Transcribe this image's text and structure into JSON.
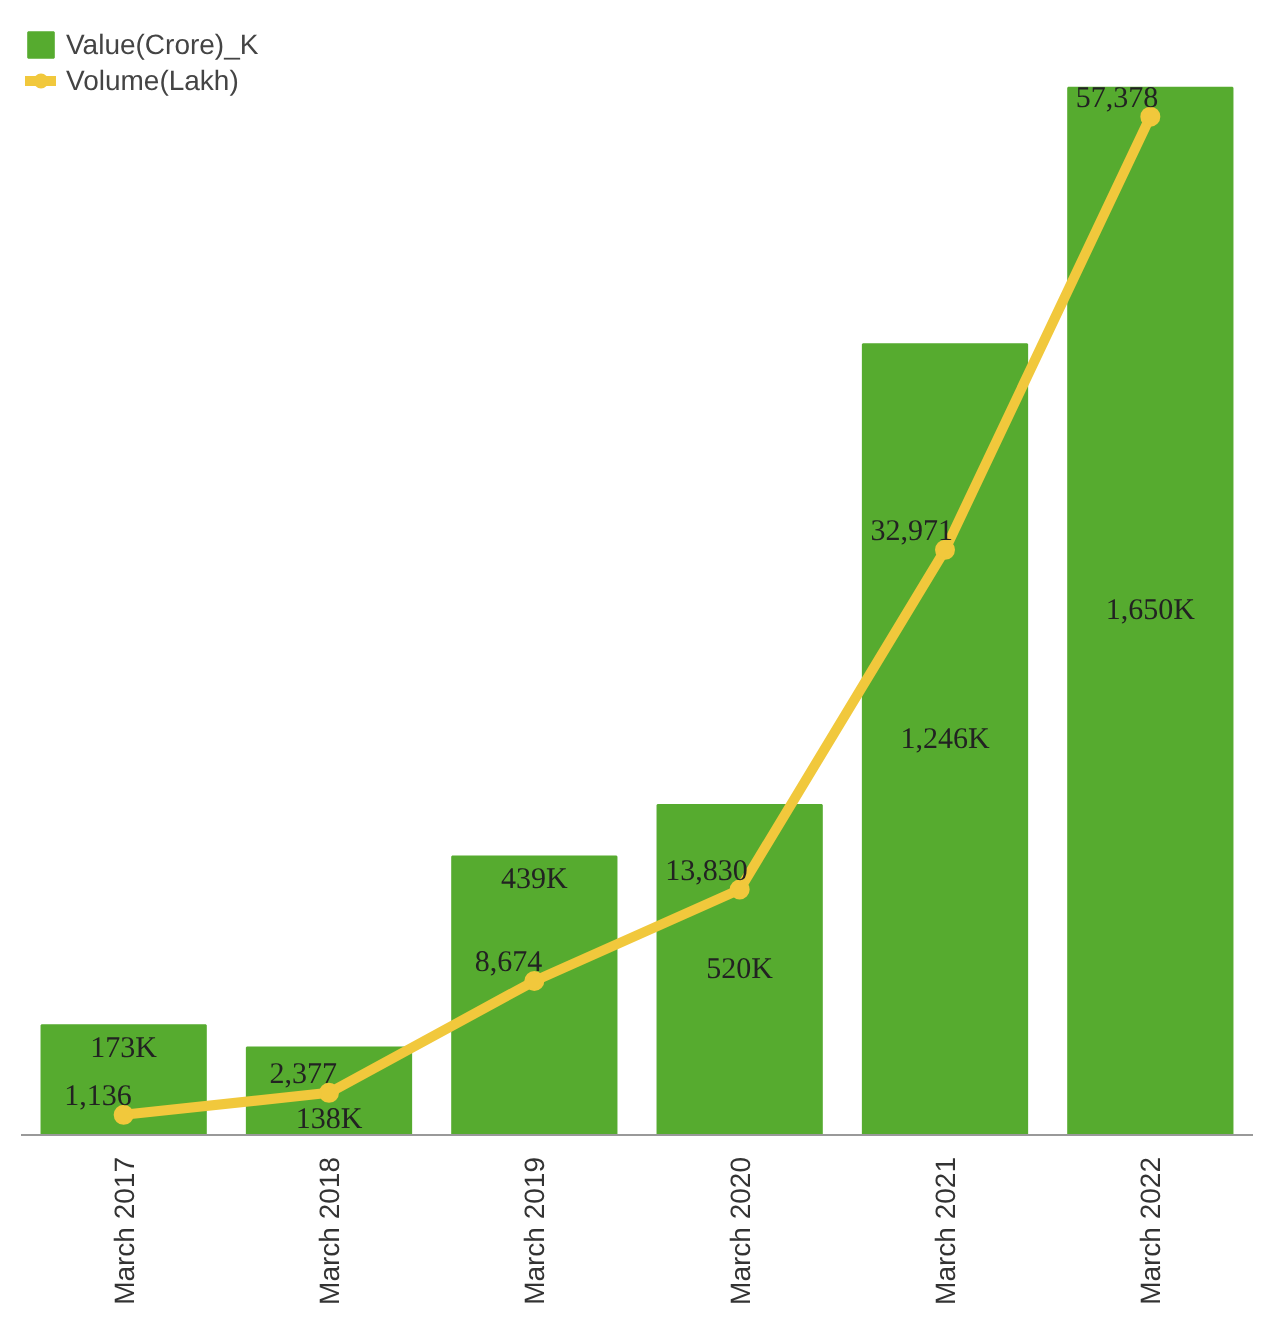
{
  "chart_data": {
    "type": "bar",
    "categories": [
      "March 2017",
      "March 2018",
      "March 2019",
      "March 2020",
      "March 2021",
      "March 2022"
    ],
    "series": [
      {
        "name": "Value(Crore)_K",
        "color": "#56ab2f",
        "values": [
          173,
          138,
          439,
          520,
          1246,
          1650
        ],
        "value_labels": [
          "173K",
          "138K",
          "439K",
          "520K",
          "1,246K",
          "1,650K"
        ]
      },
      {
        "name": "Volume(Lakh)",
        "type": "line",
        "axis": "y2",
        "color": "#f1c83c",
        "values": [
          1136,
          2377,
          8674,
          13830,
          32971,
          57378
        ],
        "value_labels": [
          "1,136",
          "2,377",
          "8,674",
          "13,830",
          "32,971",
          "57,378"
        ]
      }
    ],
    "legend": "top left",
    "grid": false,
    "tick_labels": "x",
    "marker": "circle"
  }
}
